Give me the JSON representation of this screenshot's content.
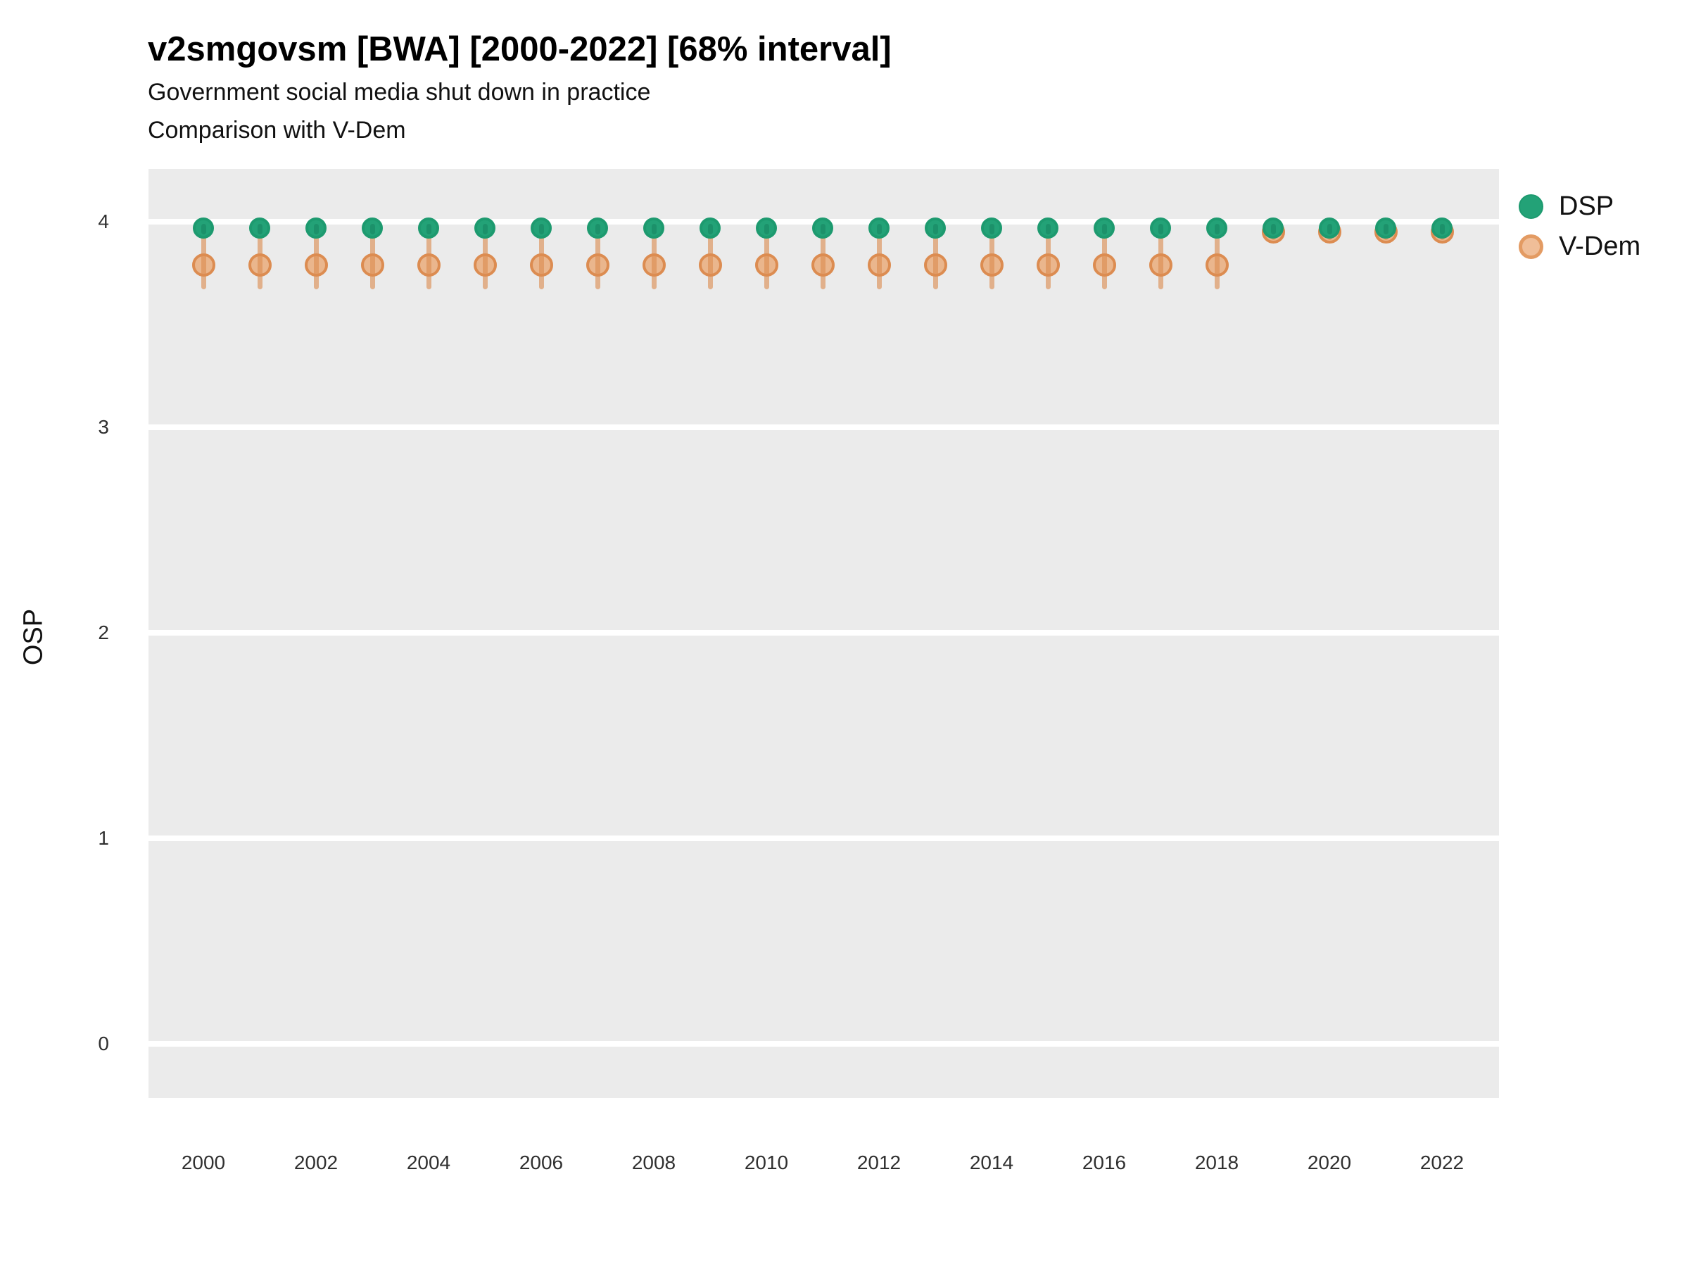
{
  "header": {
    "title": "v2smgovsm [BWA] [2000-2022] [68% interval]",
    "subtitle1": "Government social media shut down in practice",
    "subtitle2": "Comparison with V-Dem"
  },
  "axes": {
    "ylabel": "OSP"
  },
  "legend": {
    "items": [
      {
        "label": "DSP",
        "fill": "#23A277",
        "stroke": "#1D9A6F",
        "stroke_width": 2
      },
      {
        "label": "V-Dem",
        "fill": "#F0BE98",
        "stroke": "#E39B63",
        "stroke_width": 5
      }
    ]
  },
  "chart_data": {
    "type": "scatter",
    "title": "v2smgovsm [BWA] [2000-2022] [68% interval]",
    "subtitle": "Government social media shut down in practice — Comparison with V-Dem",
    "xlabel": "",
    "ylabel": "OSP",
    "interval": "68%",
    "x": [
      2000,
      2001,
      2002,
      2003,
      2004,
      2005,
      2006,
      2007,
      2008,
      2009,
      2010,
      2011,
      2012,
      2013,
      2014,
      2015,
      2016,
      2017,
      2018,
      2019,
      2020,
      2021,
      2022
    ],
    "series": [
      {
        "name": "DSP",
        "point_fill": "#23A277",
        "point_stroke": "#1D9A6F",
        "bar_color": "rgba(16,116,82,0.35)",
        "point_size": 30,
        "values": [
          3.97,
          3.97,
          3.97,
          3.97,
          3.97,
          3.97,
          3.97,
          3.97,
          3.97,
          3.97,
          3.97,
          3.97,
          3.97,
          3.97,
          3.97,
          3.97,
          3.97,
          3.97,
          3.97,
          3.97,
          3.97,
          3.97,
          3.97
        ],
        "lo": [
          3.94,
          3.94,
          3.94,
          3.94,
          3.94,
          3.94,
          3.94,
          3.94,
          3.94,
          3.94,
          3.94,
          3.94,
          3.94,
          3.94,
          3.94,
          3.94,
          3.94,
          3.94,
          3.94,
          3.94,
          3.94,
          3.94,
          3.94
        ],
        "hi": [
          3.99,
          3.99,
          3.99,
          3.99,
          3.99,
          3.99,
          3.99,
          3.99,
          3.99,
          3.99,
          3.99,
          3.99,
          3.99,
          3.99,
          3.99,
          3.99,
          3.99,
          3.99,
          3.99,
          3.99,
          3.99,
          3.99,
          3.99
        ]
      },
      {
        "name": "V-Dem",
        "point_fill": "#EAB68D",
        "point_stroke": "#DC8C51",
        "bar_color": "rgba(220,140,81,0.62)",
        "point_size": 33,
        "values": [
          3.79,
          3.79,
          3.79,
          3.79,
          3.79,
          3.79,
          3.79,
          3.79,
          3.79,
          3.79,
          3.79,
          3.79,
          3.79,
          3.79,
          3.79,
          3.79,
          3.79,
          3.79,
          3.79,
          3.95,
          3.95,
          3.95,
          3.95
        ],
        "lo": [
          3.67,
          3.67,
          3.67,
          3.67,
          3.67,
          3.67,
          3.67,
          3.67,
          3.67,
          3.67,
          3.67,
          3.67,
          3.67,
          3.67,
          3.67,
          3.67,
          3.67,
          3.67,
          3.67,
          3.91,
          3.91,
          3.91,
          3.91
        ],
        "hi": [
          3.93,
          3.93,
          3.93,
          3.93,
          3.93,
          3.93,
          3.93,
          3.93,
          3.93,
          3.93,
          3.93,
          3.93,
          3.93,
          3.93,
          3.93,
          3.93,
          3.93,
          3.93,
          3.93,
          3.97,
          3.97,
          3.97,
          3.97
        ]
      }
    ],
    "xticks": [
      2000,
      2002,
      2004,
      2006,
      2008,
      2010,
      2012,
      2014,
      2016,
      2018,
      2020,
      2022
    ],
    "yticks": [
      0,
      1,
      2,
      3,
      4
    ],
    "ylim": [
      -0.26,
      4.26
    ],
    "xlim": [
      1999,
      2023
    ],
    "grid": "major-horizontal-only",
    "panel_background": "#EBEBEB",
    "gridline_color": "#FFFFFF",
    "legend_position": "right"
  }
}
